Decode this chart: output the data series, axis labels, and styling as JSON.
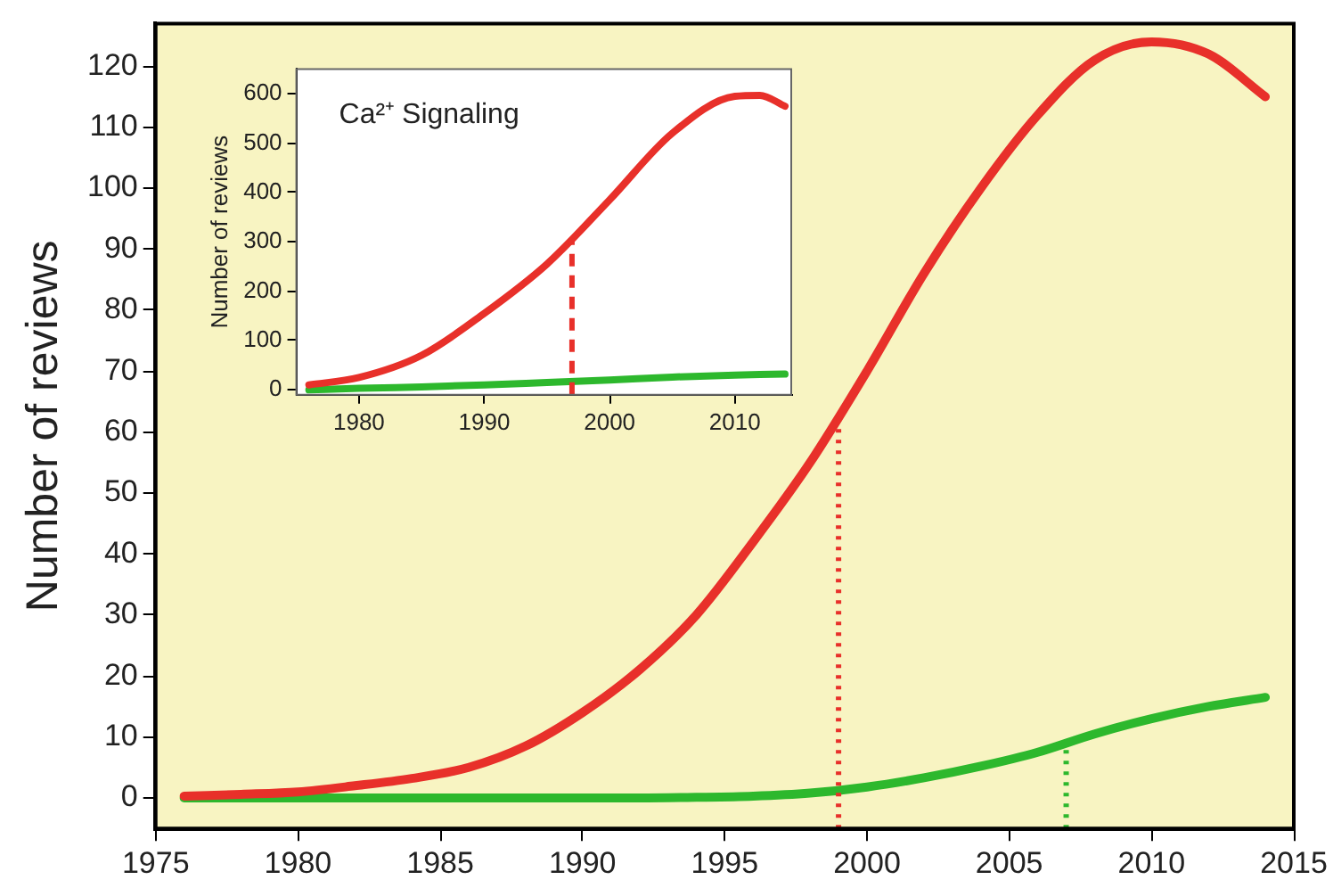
{
  "chart_data": [
    {
      "type": "line",
      "ylabel": "Number of reviews",
      "marker": "none",
      "line_style": "solid",
      "legend": false,
      "x": [
        1976,
        1978,
        1980,
        1982,
        1984,
        1986,
        1988,
        1990,
        1992,
        1994,
        1996,
        1998,
        2000,
        2002,
        2004,
        2006,
        2008,
        2010,
        2012,
        2014
      ],
      "series": [
        {
          "color": "#e8302a",
          "values": [
            0.3,
            0.6,
            1,
            2,
            3.2,
            5,
            8.5,
            14,
            21,
            30,
            42,
            55,
            70,
            86,
            100,
            112,
            121,
            124,
            122,
            115
          ]
        },
        {
          "color": "#2db82d",
          "values": [
            0,
            0,
            0,
            0,
            0,
            0,
            0,
            0,
            0,
            0.1,
            0.3,
            0.8,
            1.8,
            3.3,
            5.2,
            7.5,
            10.5,
            13,
            15,
            16.5
          ]
        }
      ],
      "xlim": [
        1975,
        2015
      ],
      "xticks": [
        1975,
        1980,
        1985,
        1990,
        1995,
        2000,
        2005,
        2010,
        2015
      ],
      "ylim": [
        -5,
        127
      ],
      "yticks": [
        0,
        10,
        20,
        30,
        40,
        50,
        60,
        70,
        80,
        90,
        100,
        110,
        120
      ],
      "ref_lines": [
        {
          "axis": "x",
          "value": 1999,
          "color": "#e8302a",
          "line_style": "dotted"
        },
        {
          "axis": "x",
          "value": 2007,
          "color": "#2db82d",
          "line_style": "dotted"
        }
      ]
    },
    {
      "type": "line",
      "ylabel": "Number of reviews",
      "marker": "none",
      "line_style": "solid",
      "legend": false,
      "annotations": [
        "Ca²⁺ Signaling"
      ],
      "x": [
        1976,
        1980,
        1985,
        1990,
        1995,
        2000,
        2005,
        2010,
        2012,
        2014
      ],
      "series": [
        {
          "color": "#e8302a",
          "values": [
            10,
            25,
            70,
            155,
            255,
            385,
            520,
            595,
            597,
            575
          ]
        },
        {
          "color": "#2db82d",
          "values": [
            0,
            3,
            6,
            10,
            15,
            20,
            26,
            30,
            31,
            32
          ]
        }
      ],
      "xlim": [
        1975,
        2014.5
      ],
      "xticks": [
        1980,
        1990,
        2000,
        2010
      ],
      "ylim": [
        -10,
        650
      ],
      "yticks": [
        0,
        100,
        200,
        300,
        400,
        500,
        600
      ],
      "ref_lines": [
        {
          "axis": "x",
          "value": 1997,
          "color": "#e8302a",
          "line_style": "dashed"
        }
      ]
    }
  ]
}
